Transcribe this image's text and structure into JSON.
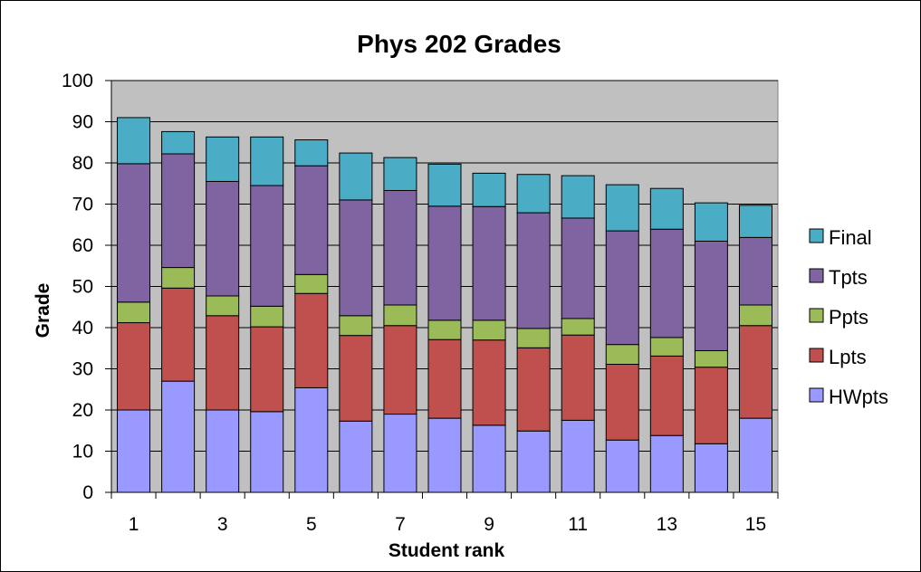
{
  "chart_data": {
    "type": "bar",
    "stacked": true,
    "title": "Phys 202 Grades",
    "xlabel": "Student rank",
    "ylabel": "Grade",
    "ylim": [
      0,
      100
    ],
    "ytick_step": 10,
    "categories": [
      1,
      2,
      3,
      4,
      5,
      6,
      7,
      8,
      9,
      10,
      11,
      12,
      13,
      14,
      15
    ],
    "xtick_labels_shown": [
      1,
      3,
      5,
      7,
      9,
      11,
      13,
      15
    ],
    "grid": true,
    "plot_background": "#c0c0c0",
    "legend_position": "right",
    "legend_order": [
      "Final",
      "Tpts",
      "Ppts",
      "Lpts",
      "HWpts"
    ],
    "series": [
      {
        "name": "HWpts",
        "color": "#9999ff",
        "values": [
          20,
          27,
          20,
          19.6,
          25.4,
          17.3,
          19,
          18,
          16.3,
          14.9,
          17.5,
          12.7,
          13.8,
          11.8,
          18
        ]
      },
      {
        "name": "Lpts",
        "color": "#c0504d",
        "values": [
          21.2,
          22.6,
          22.9,
          20.6,
          22.9,
          20.8,
          21.5,
          19.1,
          20.7,
          20.2,
          20.7,
          18.4,
          19.3,
          18.6,
          22.5
        ]
      },
      {
        "name": "Ppts",
        "color": "#9bbb59",
        "values": [
          5,
          5,
          4.8,
          5,
          4.6,
          4.8,
          5,
          4.7,
          4.8,
          4.7,
          4,
          4.8,
          4.5,
          4,
          5
        ]
      },
      {
        "name": "Tpts",
        "color": "#8064a2",
        "values": [
          33.6,
          27.6,
          27.8,
          29.3,
          26.4,
          28.1,
          27.8,
          27.7,
          27.6,
          28.1,
          24.4,
          27.6,
          26.3,
          26.6,
          16.4
        ]
      },
      {
        "name": "Final",
        "color": "#4bacc6",
        "values": [
          11.2,
          5.4,
          10.8,
          11.8,
          6.3,
          11.4,
          8,
          10.2,
          8.1,
          9.3,
          10.3,
          11.2,
          9.9,
          9.3,
          7.8
        ]
      }
    ]
  }
}
